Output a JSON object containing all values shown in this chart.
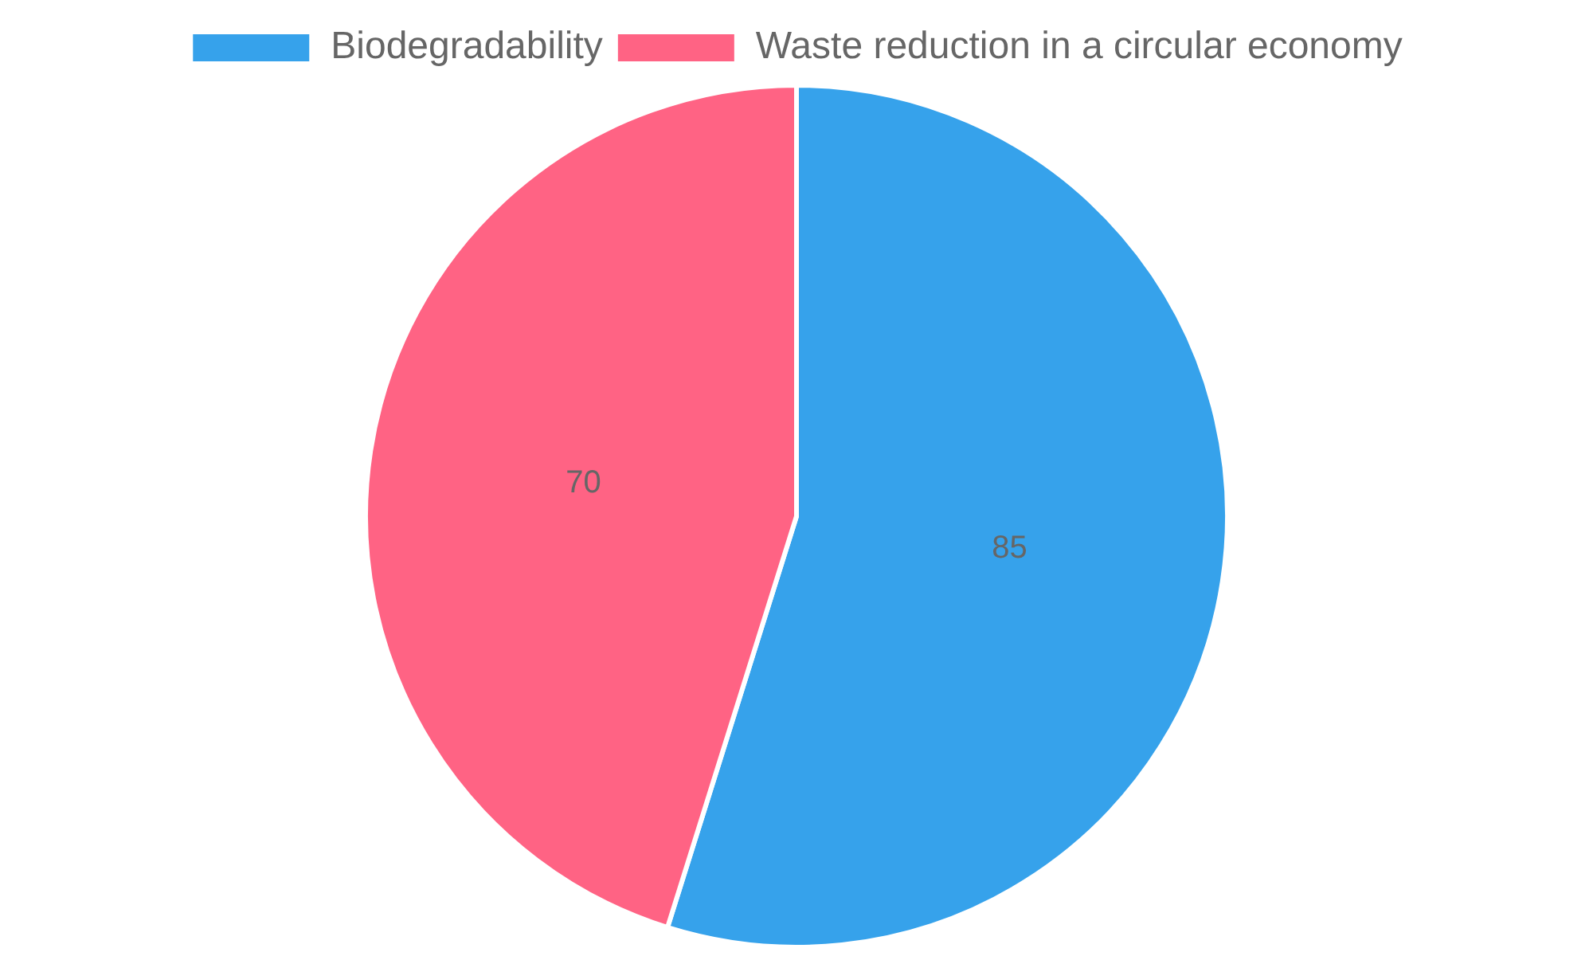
{
  "chart_data": {
    "type": "pie",
    "categories": [
      "Biodegradability",
      "Waste reduction in a circular economy"
    ],
    "values": [
      85,
      70
    ],
    "colors": [
      "#36a2eb",
      "#ff6384"
    ],
    "legend": "top",
    "data_labels": true
  }
}
